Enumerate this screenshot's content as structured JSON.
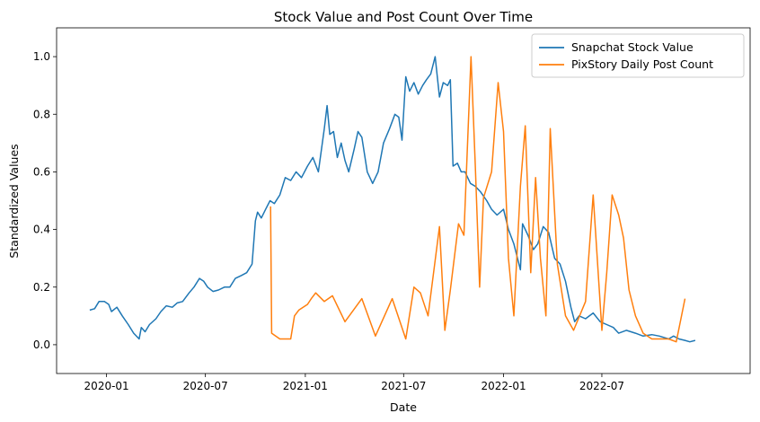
{
  "chart_data": {
    "type": "line",
    "title": "Stock Value and Post Count Over Time",
    "xlabel": "Date",
    "ylabel": "Standardized Values",
    "x_range": [
      "2019-10-01",
      "2023-03-31"
    ],
    "ylim": [
      -0.1,
      1.1
    ],
    "x_ticks": [
      "2020-01",
      "2020-07",
      "2021-01",
      "2021-07",
      "2022-01",
      "2022-07"
    ],
    "y_ticks": [
      "0.0",
      "0.2",
      "0.4",
      "0.6",
      "0.8",
      "1.0"
    ],
    "grid": false,
    "legend_position": "top-right",
    "series": [
      {
        "name": "Snapchat Stock Value",
        "color": "#1f77b4",
        "points": [
          [
            "2019-12-01",
            0.12
          ],
          [
            "2019-12-10",
            0.125
          ],
          [
            "2019-12-18",
            0.15
          ],
          [
            "2019-12-28",
            0.15
          ],
          [
            "2020-01-05",
            0.14
          ],
          [
            "2020-01-10",
            0.115
          ],
          [
            "2020-01-20",
            0.13
          ],
          [
            "2020-01-30",
            0.1
          ],
          [
            "2020-02-10",
            0.07
          ],
          [
            "2020-02-20",
            0.04
          ],
          [
            "2020-03-01",
            0.02
          ],
          [
            "2020-03-05",
            0.06
          ],
          [
            "2020-03-12",
            0.045
          ],
          [
            "2020-03-20",
            0.07
          ],
          [
            "2020-04-01",
            0.09
          ],
          [
            "2020-04-10",
            0.115
          ],
          [
            "2020-04-20",
            0.135
          ],
          [
            "2020-05-01",
            0.13
          ],
          [
            "2020-05-10",
            0.145
          ],
          [
            "2020-05-20",
            0.15
          ],
          [
            "2020-06-01",
            0.18
          ],
          [
            "2020-06-10",
            0.2
          ],
          [
            "2020-06-20",
            0.23
          ],
          [
            "2020-06-28",
            0.22
          ],
          [
            "2020-07-05",
            0.2
          ],
          [
            "2020-07-15",
            0.185
          ],
          [
            "2020-07-25",
            0.19
          ],
          [
            "2020-08-05",
            0.2
          ],
          [
            "2020-08-15",
            0.2
          ],
          [
            "2020-08-25",
            0.23
          ],
          [
            "2020-09-05",
            0.24
          ],
          [
            "2020-09-15",
            0.25
          ],
          [
            "2020-09-25",
            0.28
          ],
          [
            "2020-10-01",
            0.43
          ],
          [
            "2020-10-05",
            0.46
          ],
          [
            "2020-10-12",
            0.44
          ],
          [
            "2020-10-20",
            0.47
          ],
          [
            "2020-10-28",
            0.5
          ],
          [
            "2020-11-05",
            0.49
          ],
          [
            "2020-11-15",
            0.52
          ],
          [
            "2020-11-25",
            0.58
          ],
          [
            "2020-12-05",
            0.57
          ],
          [
            "2020-12-15",
            0.6
          ],
          [
            "2020-12-25",
            0.58
          ],
          [
            "2021-01-05",
            0.62
          ],
          [
            "2021-01-15",
            0.65
          ],
          [
            "2021-01-25",
            0.6
          ],
          [
            "2021-02-05",
            0.75
          ],
          [
            "2021-02-10",
            0.83
          ],
          [
            "2021-02-15",
            0.73
          ],
          [
            "2021-02-22",
            0.74
          ],
          [
            "2021-03-01",
            0.65
          ],
          [
            "2021-03-08",
            0.7
          ],
          [
            "2021-03-15",
            0.64
          ],
          [
            "2021-03-22",
            0.6
          ],
          [
            "2021-04-01",
            0.68
          ],
          [
            "2021-04-08",
            0.74
          ],
          [
            "2021-04-15",
            0.72
          ],
          [
            "2021-04-25",
            0.6
          ],
          [
            "2021-05-05",
            0.56
          ],
          [
            "2021-05-15",
            0.6
          ],
          [
            "2021-05-25",
            0.7
          ],
          [
            "2021-06-05",
            0.75
          ],
          [
            "2021-06-15",
            0.8
          ],
          [
            "2021-06-22",
            0.79
          ],
          [
            "2021-06-28",
            0.71
          ],
          [
            "2021-07-05",
            0.93
          ],
          [
            "2021-07-12",
            0.88
          ],
          [
            "2021-07-20",
            0.91
          ],
          [
            "2021-07-28",
            0.87
          ],
          [
            "2021-08-05",
            0.9
          ],
          [
            "2021-08-12",
            0.92
          ],
          [
            "2021-08-20",
            0.94
          ],
          [
            "2021-08-28",
            1.0
          ],
          [
            "2021-09-05",
            0.86
          ],
          [
            "2021-09-12",
            0.91
          ],
          [
            "2021-09-20",
            0.9
          ],
          [
            "2021-09-25",
            0.92
          ],
          [
            "2021-09-30",
            0.62
          ],
          [
            "2021-10-08",
            0.63
          ],
          [
            "2021-10-15",
            0.6
          ],
          [
            "2021-10-22",
            0.6
          ],
          [
            "2021-11-01",
            0.56
          ],
          [
            "2021-11-10",
            0.55
          ],
          [
            "2021-11-20",
            0.53
          ],
          [
            "2021-12-01",
            0.5
          ],
          [
            "2021-12-10",
            0.47
          ],
          [
            "2021-12-20",
            0.45
          ],
          [
            "2022-01-01",
            0.47
          ],
          [
            "2022-01-10",
            0.4
          ],
          [
            "2022-01-20",
            0.35
          ],
          [
            "2022-02-01",
            0.26
          ],
          [
            "2022-02-05",
            0.42
          ],
          [
            "2022-02-15",
            0.38
          ],
          [
            "2022-02-25",
            0.33
          ],
          [
            "2022-03-05",
            0.35
          ],
          [
            "2022-03-15",
            0.41
          ],
          [
            "2022-03-25",
            0.39
          ],
          [
            "2022-04-05",
            0.3
          ],
          [
            "2022-04-15",
            0.28
          ],
          [
            "2022-04-25",
            0.22
          ],
          [
            "2022-05-05",
            0.13
          ],
          [
            "2022-05-12",
            0.08
          ],
          [
            "2022-05-20",
            0.1
          ],
          [
            "2022-06-01",
            0.09
          ],
          [
            "2022-06-15",
            0.11
          ],
          [
            "2022-06-28",
            0.08
          ],
          [
            "2022-07-10",
            0.07
          ],
          [
            "2022-07-22",
            0.06
          ],
          [
            "2022-08-01",
            0.04
          ],
          [
            "2022-08-15",
            0.05
          ],
          [
            "2022-09-01",
            0.04
          ],
          [
            "2022-09-15",
            0.03
          ],
          [
            "2022-10-01",
            0.035
          ],
          [
            "2022-10-15",
            0.03
          ],
          [
            "2022-11-01",
            0.02
          ],
          [
            "2022-11-10",
            0.03
          ],
          [
            "2022-11-20",
            0.02
          ],
          [
            "2022-12-01",
            0.015
          ],
          [
            "2022-12-10",
            0.01
          ],
          [
            "2022-12-20",
            0.015
          ]
        ]
      },
      {
        "name": "PixStory Daily Post Count",
        "color": "#ff7f0e",
        "points": [
          [
            "2020-10-29",
            0.48
          ],
          [
            "2020-10-31",
            0.04
          ],
          [
            "2020-11-15",
            0.02
          ],
          [
            "2020-12-05",
            0.02
          ],
          [
            "2020-12-12",
            0.1
          ],
          [
            "2020-12-20",
            0.12
          ],
          [
            "2021-01-05",
            0.14
          ],
          [
            "2021-01-12",
            0.16
          ],
          [
            "2021-01-20",
            0.18
          ],
          [
            "2021-02-05",
            0.15
          ],
          [
            "2021-02-20",
            0.17
          ],
          [
            "2021-03-15",
            0.08
          ],
          [
            "2021-04-15",
            0.16
          ],
          [
            "2021-05-10",
            0.03
          ],
          [
            "2021-06-10",
            0.16
          ],
          [
            "2021-07-05",
            0.02
          ],
          [
            "2021-07-20",
            0.2
          ],
          [
            "2021-08-01",
            0.18
          ],
          [
            "2021-08-15",
            0.1
          ],
          [
            "2021-09-05",
            0.41
          ],
          [
            "2021-09-15",
            0.05
          ],
          [
            "2021-09-25",
            0.19
          ],
          [
            "2021-10-10",
            0.42
          ],
          [
            "2021-10-20",
            0.38
          ],
          [
            "2021-11-02",
            1.0
          ],
          [
            "2021-11-10",
            0.62
          ],
          [
            "2021-11-18",
            0.2
          ],
          [
            "2021-11-25",
            0.51
          ],
          [
            "2021-12-10",
            0.6
          ],
          [
            "2021-12-22",
            0.91
          ],
          [
            "2022-01-01",
            0.74
          ],
          [
            "2022-01-10",
            0.3
          ],
          [
            "2022-01-20",
            0.1
          ],
          [
            "2022-02-01",
            0.55
          ],
          [
            "2022-02-10",
            0.76
          ],
          [
            "2022-02-20",
            0.25
          ],
          [
            "2022-03-01",
            0.58
          ],
          [
            "2022-03-10",
            0.3
          ],
          [
            "2022-03-20",
            0.1
          ],
          [
            "2022-03-28",
            0.75
          ],
          [
            "2022-04-10",
            0.28
          ],
          [
            "2022-04-25",
            0.1
          ],
          [
            "2022-05-10",
            0.05
          ],
          [
            "2022-06-01",
            0.15
          ],
          [
            "2022-06-15",
            0.52
          ],
          [
            "2022-07-01",
            0.05
          ],
          [
            "2022-07-10",
            0.25
          ],
          [
            "2022-07-20",
            0.52
          ],
          [
            "2022-08-01",
            0.45
          ],
          [
            "2022-08-10",
            0.37
          ],
          [
            "2022-08-20",
            0.19
          ],
          [
            "2022-09-01",
            0.1
          ],
          [
            "2022-09-15",
            0.04
          ],
          [
            "2022-10-01",
            0.02
          ],
          [
            "2022-11-01",
            0.02
          ],
          [
            "2022-11-15",
            0.01
          ],
          [
            "2022-12-01",
            0.16
          ]
        ]
      }
    ]
  }
}
